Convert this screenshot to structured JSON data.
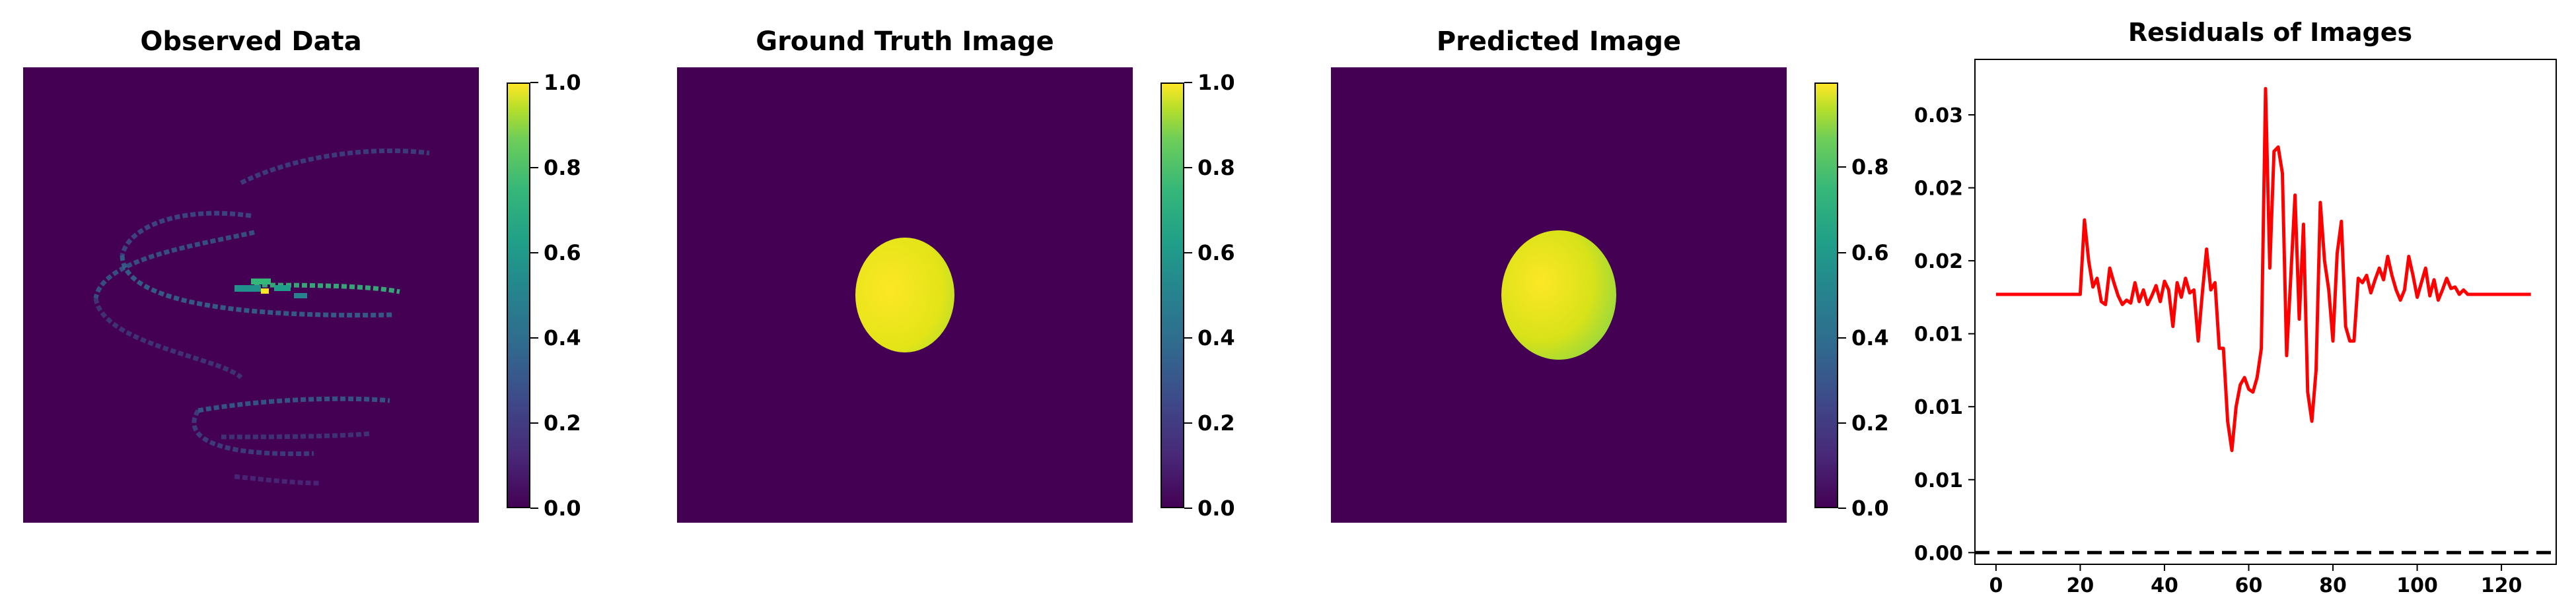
{
  "panels": [
    {
      "title": "Observed Data",
      "colorbar_ticks": [
        "0.0",
        "0.2",
        "0.4",
        "0.6",
        "0.8",
        "1.0"
      ]
    },
    {
      "title": "Ground Truth Image",
      "colorbar_ticks": [
        "0.0",
        "0.2",
        "0.4",
        "0.6",
        "0.8",
        "1.0"
      ]
    },
    {
      "title": "Predicted Image",
      "colorbar_ticks": [
        "0.0",
        "0.2",
        "0.4",
        "0.6",
        "0.8"
      ]
    }
  ],
  "colormap": [
    "#440154",
    "#31688e",
    "#35b779",
    "#fde725"
  ],
  "chart_data": {
    "type": "line",
    "title": "Residuals of Images",
    "xlabel": "",
    "ylabel": "",
    "xlim": [
      -5,
      133
    ],
    "ylim": [
      -0.0008,
      0.0338
    ],
    "xticks": [
      0,
      20,
      40,
      60,
      80,
      100,
      120
    ],
    "yticks": [
      0.0,
      0.005,
      0.01,
      0.015,
      0.02,
      0.025,
      0.03
    ],
    "ytick_labels": [
      "0.00",
      "0.01",
      "0.01",
      "0.01",
      "0.02",
      "0.02",
      "0.03"
    ],
    "series_color": "#ff0000",
    "reference_line": {
      "y": 0.0,
      "style": "dashed",
      "color": "#000000"
    },
    "series": [
      {
        "x": [
          0,
          1,
          2,
          3,
          4,
          5,
          6,
          7,
          8,
          9,
          10,
          11,
          12,
          13,
          14,
          15,
          16,
          17,
          18,
          19,
          20,
          21,
          22,
          23,
          24,
          25,
          26,
          27,
          28,
          29,
          30,
          31,
          32,
          33,
          34,
          35,
          36,
          37,
          38,
          39,
          40,
          41,
          42,
          43,
          44,
          45,
          46,
          47,
          48,
          49,
          50,
          51,
          52,
          53,
          54,
          55,
          56,
          57,
          58,
          59,
          60,
          61,
          62,
          63,
          64,
          65,
          66,
          67,
          68,
          69,
          70,
          71,
          72,
          73,
          74,
          75,
          76,
          77,
          78,
          79,
          80,
          81,
          82,
          83,
          84,
          85,
          86,
          87,
          88,
          89,
          90,
          91,
          92,
          93,
          94,
          95,
          96,
          97,
          98,
          99,
          100,
          101,
          102,
          103,
          104,
          105,
          106,
          107,
          108,
          109,
          110,
          111,
          112,
          113,
          114,
          115,
          116,
          117,
          118,
          119,
          120,
          121,
          122,
          123,
          124,
          125,
          126,
          127
        ],
        "values": [
          0.0177,
          0.0177,
          0.0177,
          0.0177,
          0.0177,
          0.0177,
          0.0177,
          0.0177,
          0.0177,
          0.0177,
          0.0177,
          0.0177,
          0.0177,
          0.0177,
          0.0177,
          0.0177,
          0.0177,
          0.0177,
          0.0177,
          0.0177,
          0.0177,
          0.0228,
          0.02,
          0.0182,
          0.0188,
          0.0172,
          0.017,
          0.0195,
          0.0185,
          0.0176,
          0.017,
          0.0173,
          0.0171,
          0.0185,
          0.0172,
          0.018,
          0.017,
          0.0176,
          0.0183,
          0.0172,
          0.0186,
          0.018,
          0.0155,
          0.0185,
          0.0175,
          0.0188,
          0.0178,
          0.018,
          0.0145,
          0.0178,
          0.0208,
          0.018,
          0.0185,
          0.014,
          0.014,
          0.009,
          0.007,
          0.01,
          0.0115,
          0.012,
          0.0112,
          0.011,
          0.012,
          0.014,
          0.0318,
          0.0195,
          0.0275,
          0.0278,
          0.026,
          0.0135,
          0.019,
          0.0245,
          0.016,
          0.0225,
          0.011,
          0.009,
          0.0125,
          0.024,
          0.02,
          0.018,
          0.0145,
          0.0205,
          0.0227,
          0.0155,
          0.0145,
          0.0145,
          0.0188,
          0.0185,
          0.019,
          0.0178,
          0.0187,
          0.0195,
          0.0187,
          0.0203,
          0.019,
          0.018,
          0.0173,
          0.018,
          0.0203,
          0.019,
          0.0175,
          0.0185,
          0.0195,
          0.0176,
          0.0187,
          0.0173,
          0.018,
          0.0188,
          0.0181,
          0.0182,
          0.0177,
          0.018,
          0.0177,
          0.0177,
          0.0177,
          0.0177,
          0.0177,
          0.0177,
          0.0177,
          0.0177,
          0.0177,
          0.0177,
          0.0177,
          0.0177,
          0.0177,
          0.0177,
          0.0177,
          0.0177
        ]
      }
    ]
  }
}
